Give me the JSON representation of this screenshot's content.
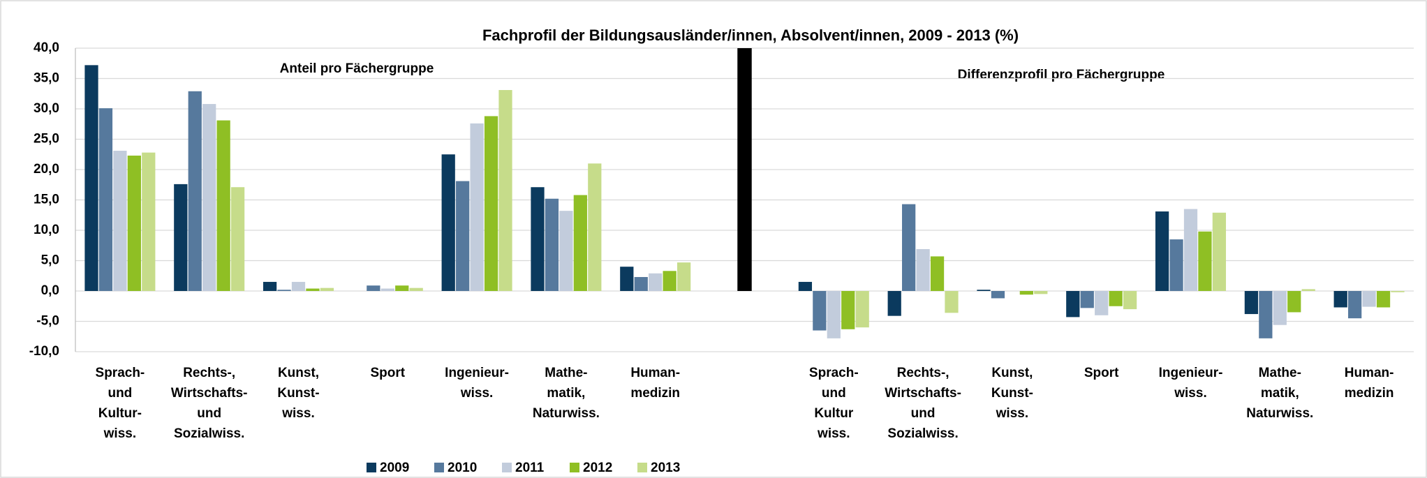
{
  "chart_data": {
    "type": "bar",
    "title": "Fachprofil der Bildungsausländer/innen, Absolvent/innen,  2009 - 2013 (%)",
    "annotations": [
      "Anteil pro Fächergruppe",
      "Differenzprofil pro Fächergruppe"
    ],
    "categories": [
      "Sprach-\nund\nKultur-\nwiss.",
      "Rechts-,\nWirtschafts-\nund\nSozialwiss.",
      "Kunst,\nKunst-\nwiss.",
      "Sport",
      "Ingenieur-\nwiss.",
      "Mathe-\nmatik,\nNaturwiss.",
      "Human-\nmedizin",
      null,
      "Sprach-\nund\nKultur\nwiss.",
      "Rechts-,\nWirtschafts-\nund\nSozialwiss.",
      "Kunst,\nKunst-\nwiss.",
      "Sport",
      "Ingenieur-\nwiss.",
      "Mathe-\nmatik,\nNaturwiss.",
      "Human-\nmedizin"
    ],
    "series": [
      {
        "name": "2009",
        "color": "#0b3a5e",
        "values": [
          37.2,
          17.6,
          1.5,
          0,
          22.5,
          17.1,
          4.0,
          null,
          1.5,
          -4.1,
          0.2,
          -4.3,
          13.1,
          -3.8,
          -2.7
        ]
      },
      {
        "name": "2010",
        "color": "#56799d",
        "values": [
          30.1,
          32.9,
          0.2,
          0.9,
          18.1,
          15.2,
          2.3,
          null,
          -6.5,
          14.3,
          -1.2,
          -2.8,
          8.5,
          -7.8,
          -4.5
        ]
      },
      {
        "name": "2011",
        "color": "#c2ccdc",
        "values": [
          23.1,
          30.8,
          1.5,
          0.4,
          27.6,
          13.2,
          2.9,
          null,
          -7.8,
          6.9,
          0,
          -4.0,
          13.5,
          -5.6,
          -2.6
        ]
      },
      {
        "name": "2012",
        "color": "#8fbf24",
        "values": [
          22.3,
          28.1,
          0.4,
          0.9,
          28.8,
          15.8,
          3.3,
          null,
          -6.3,
          5.7,
          -0.6,
          -2.5,
          9.8,
          -3.5,
          -2.7
        ]
      },
      {
        "name": "2013",
        "color": "#c6dc8a",
        "values": [
          22.8,
          17.1,
          0.5,
          0.5,
          33.1,
          21.0,
          4.7,
          null,
          -6.0,
          -3.6,
          -0.5,
          -3.0,
          12.9,
          0.3,
          -0.2
        ]
      }
    ],
    "separator": {
      "value": 40,
      "color": "#000000"
    },
    "ylim": [
      -10,
      40
    ],
    "yticks": [
      {
        "value": -10,
        "label": "-10,0"
      },
      {
        "value": -5,
        "label": "-5,0"
      },
      {
        "value": 0,
        "label": "0,0"
      },
      {
        "value": 5,
        "label": "5,0"
      },
      {
        "value": 10,
        "label": "10,0"
      },
      {
        "value": 15,
        "label": "15,0"
      },
      {
        "value": 20,
        "label": "20,0"
      },
      {
        "value": 25,
        "label": "25,0"
      },
      {
        "value": 30,
        "label": "30,0"
      },
      {
        "value": 35,
        "label": "35,0"
      },
      {
        "value": 40,
        "label": "40,0"
      }
    ],
    "grid": true
  }
}
